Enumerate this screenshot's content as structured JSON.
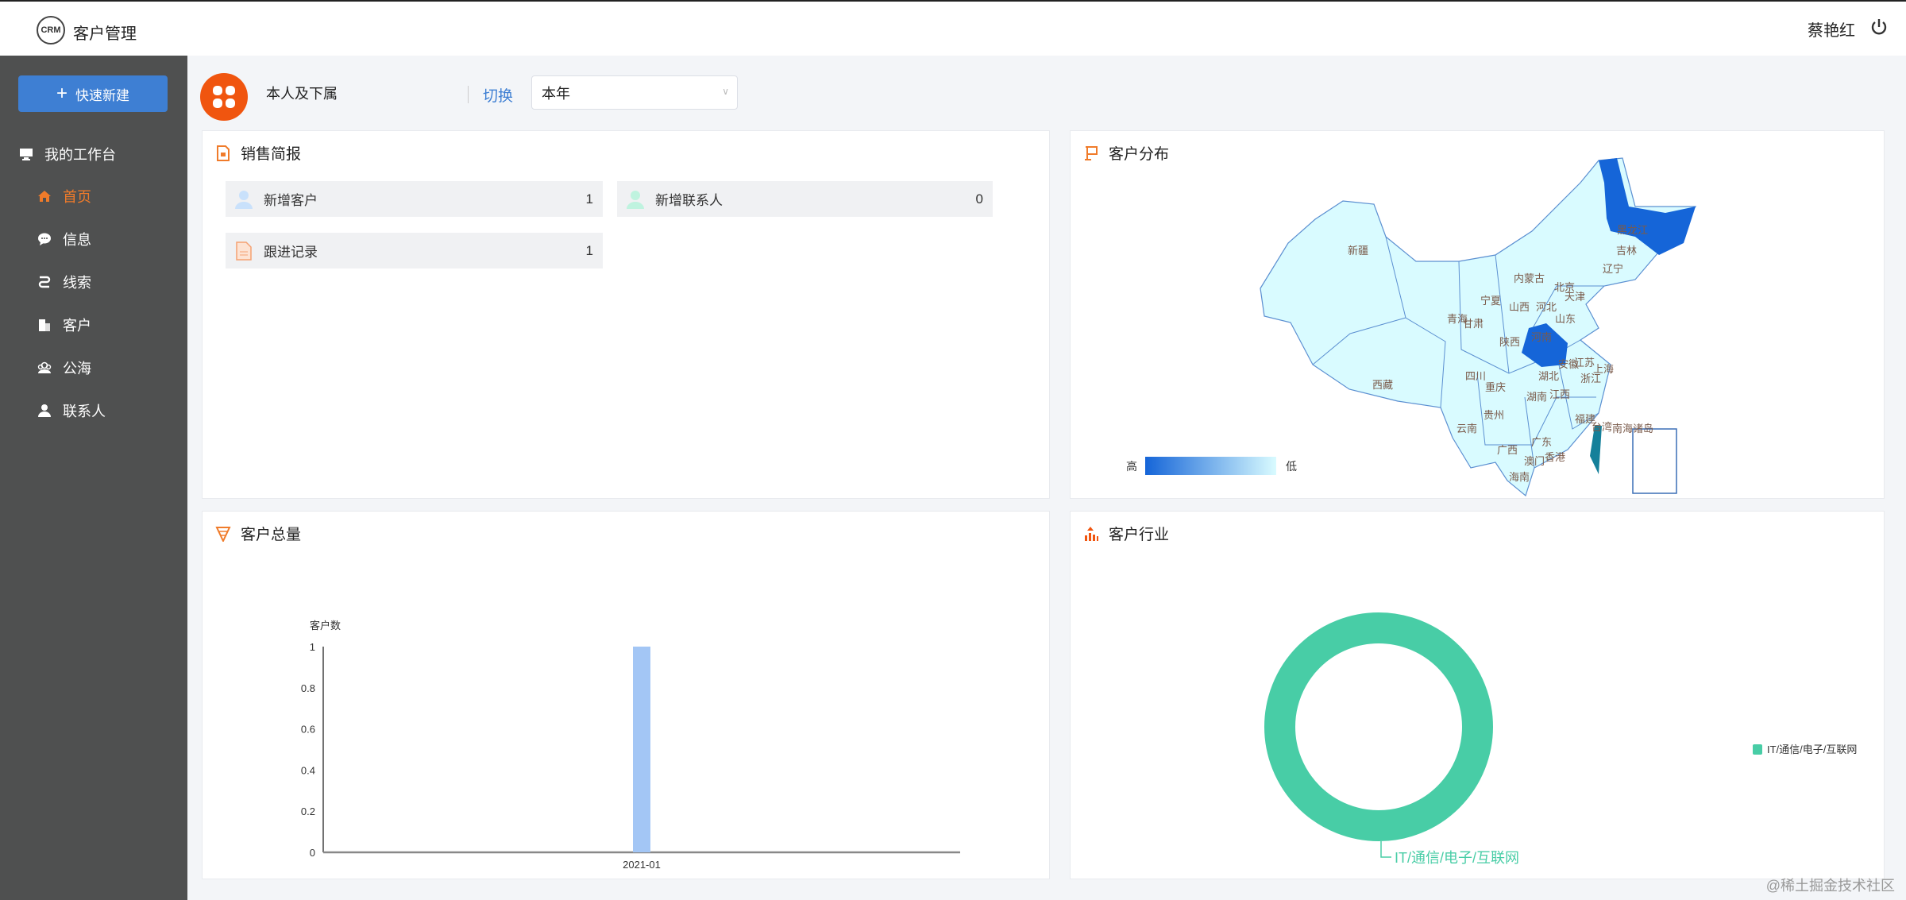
{
  "header": {
    "logo_text": "CRM",
    "app_title": "客户管理",
    "user_name": "蔡艳红",
    "power_icon": "power-icon"
  },
  "sidebar": {
    "quick_create": "快速新建",
    "section": "我的工作台",
    "items": [
      {
        "label": "首页",
        "icon": "home-icon",
        "active": true
      },
      {
        "label": "信息",
        "icon": "message-icon"
      },
      {
        "label": "线索",
        "icon": "route-icon"
      },
      {
        "label": "客户",
        "icon": "building-icon"
      },
      {
        "label": "公海",
        "icon": "group-icon"
      },
      {
        "label": "联系人",
        "icon": "person-icon"
      }
    ]
  },
  "toolbar": {
    "scope": "本人及下属",
    "switch_label": "切换",
    "period": "本年"
  },
  "sales": {
    "title": "销售简报",
    "items": [
      {
        "label": "新增客户",
        "value": "1"
      },
      {
        "label": "新增联系人",
        "value": "0"
      },
      {
        "label": "跟进记录",
        "value": "1"
      }
    ]
  },
  "colors": {
    "accent": "#f07b2a",
    "primary": "#3e7fd3",
    "sidebar": "#4f5050",
    "map_high": "#1565d8",
    "map_low": "#d9fbff",
    "donut": "#48cda6",
    "bar": "#a3c6f5"
  },
  "chart_data": [
    {
      "type": "map",
      "title": "客户分布",
      "visual_map": {
        "high_label": "高",
        "low_label": "低"
      },
      "highlighted": [
        "黑龙江",
        "河南"
      ],
      "regions": [
        "新疆",
        "西藏",
        "青海",
        "甘肃",
        "宁夏",
        "内蒙古",
        "黑龙江",
        "吉林",
        "辽宁",
        "北京",
        "天津",
        "山西",
        "河北",
        "山东",
        "陕西",
        "河南",
        "江苏",
        "安徽",
        "上海",
        "湖北",
        "浙江",
        "四川",
        "重庆",
        "江西",
        "湖南",
        "贵州",
        "福建",
        "云南",
        "台湾",
        "南海诸岛",
        "广西",
        "广东",
        "澳门",
        "香港",
        "海南"
      ]
    },
    {
      "type": "bar",
      "title": "客户总量",
      "ylabel": "客户数",
      "categories": [
        "2021-01"
      ],
      "values": [
        1
      ],
      "ylim": [
        0,
        1
      ],
      "yticks": [
        "0",
        "0.2",
        "0.4",
        "0.6",
        "0.8",
        "1"
      ],
      "grid": false
    },
    {
      "type": "pie",
      "title": "客户行业",
      "donut": true,
      "slices": [
        {
          "name": "IT/通信/电子/互联网",
          "value": 1
        }
      ],
      "legend": "right"
    }
  ],
  "watermark": "@稀土掘金技术社区"
}
